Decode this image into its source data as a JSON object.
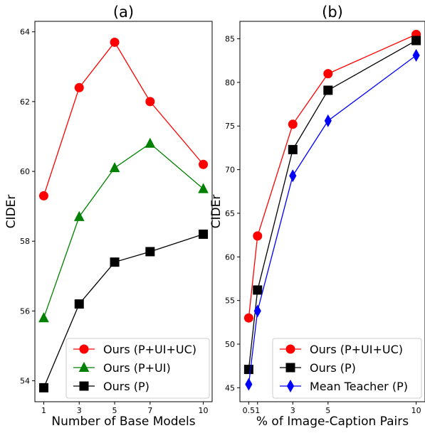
{
  "chart_data": [
    {
      "type": "line",
      "title": "(a)",
      "xlabel": "Number of Base Models",
      "ylabel": "CIDEr",
      "xlim": [
        0.5,
        10.5
      ],
      "ylim": [
        53.4,
        64.3
      ],
      "xticks": [
        1,
        3,
        5,
        7,
        10
      ],
      "yticks": [
        54,
        56,
        58,
        60,
        62,
        64
      ],
      "legend_position": "bottom-right",
      "grid": false,
      "series": [
        {
          "name": "Ours (P+UI+UC)",
          "color": "#ff0000",
          "marker": "circle",
          "points": [
            [
              1,
              59.3
            ],
            [
              3,
              62.4
            ],
            [
              5,
              63.7
            ],
            [
              7,
              62.0
            ],
            [
              10,
              60.2
            ]
          ]
        },
        {
          "name": "Ours (P+UI)",
          "color": "#008000",
          "marker": "triangle",
          "points": [
            [
              1,
              55.8
            ],
            [
              3,
              58.7
            ],
            [
              5,
              60.1
            ],
            [
              7,
              60.8
            ],
            [
              10,
              59.5
            ]
          ]
        },
        {
          "name": "Ours (P)",
          "color": "#000000",
          "marker": "square",
          "points": [
            [
              1,
              53.8
            ],
            [
              3,
              56.2
            ],
            [
              5,
              57.4
            ],
            [
              7,
              57.7
            ],
            [
              10,
              58.2
            ]
          ]
        }
      ]
    },
    {
      "type": "line",
      "title": "(b)",
      "xlabel": "% of Image-Caption Pairs",
      "ylabel": "CIDEr",
      "xlim": [
        0.0,
        10.5
      ],
      "ylim": [
        43.4,
        87.0
      ],
      "xticks": [
        0.5,
        1,
        3,
        5,
        10
      ],
      "xtick_labels": [
        "0.5",
        "1",
        "3",
        "5",
        "10"
      ],
      "yticks": [
        45,
        50,
        55,
        60,
        65,
        70,
        75,
        80,
        85
      ],
      "legend_position": "bottom-right",
      "grid": false,
      "series": [
        {
          "name": "Ours (P+UI+UC)",
          "color": "#ff0000",
          "marker": "circle",
          "points": [
            [
              0.5,
              53.0
            ],
            [
              1,
              62.4
            ],
            [
              3,
              75.2
            ],
            [
              5,
              81.0
            ],
            [
              10,
              85.5
            ]
          ]
        },
        {
          "name": "Ours (P)",
          "color": "#000000",
          "marker": "square",
          "points": [
            [
              0.5,
              47.1
            ],
            [
              1,
              56.2
            ],
            [
              3,
              72.3
            ],
            [
              5,
              79.1
            ],
            [
              10,
              84.8
            ]
          ]
        },
        {
          "name": "Mean Teacher (P)",
          "color": "#0000ff",
          "marker": "diamond",
          "points": [
            [
              0.5,
              45.4
            ],
            [
              1,
              53.8
            ],
            [
              3,
              69.3
            ],
            [
              5,
              75.6
            ],
            [
              10,
              83.1
            ]
          ]
        }
      ]
    }
  ]
}
